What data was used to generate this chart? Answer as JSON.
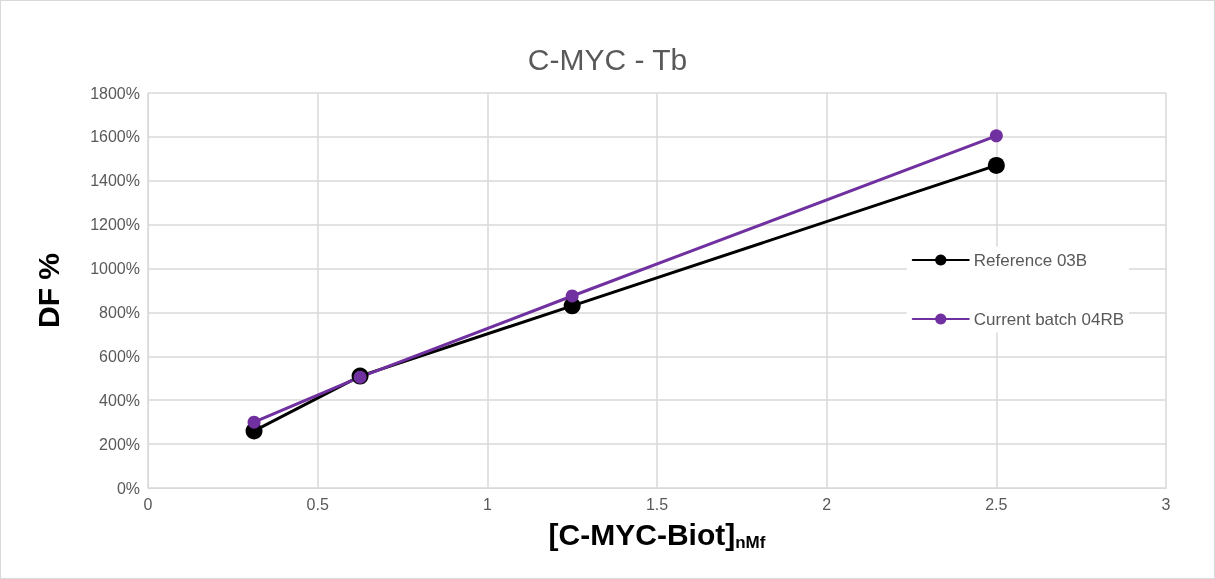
{
  "chart_data": {
    "type": "line",
    "title": "C-MYC - Tb",
    "xlabel": "[C-MYC-Biot]$_{nMf}$",
    "ylabel": "DF %",
    "x": [
      0.3125,
      0.625,
      1.25,
      2.5
    ],
    "series": [
      {
        "name": "Reference 03B",
        "color": "#000000",
        "values": [
          260,
          510,
          830,
          1470
        ]
      },
      {
        "name": "Current batch 04RB",
        "color": "#7030a0",
        "values": [
          300,
          505,
          875,
          1605
        ]
      }
    ],
    "xlim": [
      0,
      3
    ],
    "xticks": [
      0,
      0.5,
      1,
      1.5,
      2,
      2.5,
      3
    ],
    "ylim": [
      0,
      1800
    ],
    "yticks": [
      {
        "value": 0,
        "label": "0%"
      },
      {
        "value": 200,
        "label": "200%"
      },
      {
        "value": 400,
        "label": "400%"
      },
      {
        "value": 600,
        "label": "600%"
      },
      {
        "value": 800,
        "label": "800%"
      },
      {
        "value": 1000,
        "label": "1000%"
      },
      {
        "value": 1200,
        "label": "1200%"
      },
      {
        "value": 1400,
        "label": "1400%"
      },
      {
        "value": 1600,
        "label": "1600%"
      },
      {
        "value": 1800,
        "label": "1800%"
      }
    ],
    "grid": true,
    "legend": "right",
    "marker": "circle",
    "line_style": "solid"
  }
}
